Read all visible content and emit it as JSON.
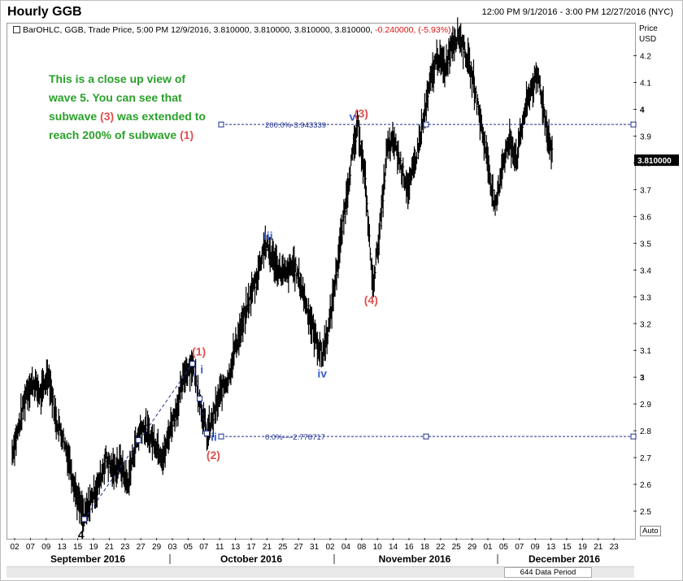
{
  "header": {
    "title": "Hourly GGB",
    "date_range": "12:00 PM 9/1/2016 - 3:00 PM 12/27/2016 (NYC)"
  },
  "legend": {
    "text": "BarOHLC, GGB, Trade Price, 5:00 PM 12/9/2016, 3.810000, 3.810000, 3.810000, 3.810000,",
    "change": "-0.240000, (-5.93%)"
  },
  "price_axis": {
    "title_line1": "Price",
    "title_line2": "USD"
  },
  "annotation_note": {
    "part1": "This is a close up view of wave 5. You can see that subwave ",
    "sub3": "(3)",
    "part2": " was extended to reach 200% of subwave ",
    "sub1": "(1)"
  },
  "auto_label": "Auto",
  "data_period": "644 Data Period",
  "colors": {
    "up_label": "#e05050",
    "down_label": "#3b5ecf",
    "note": "#2aa02a",
    "bars": "#000000",
    "fib": "#1f2f8f"
  },
  "chart_data": {
    "type": "bar",
    "series_kind": "ohlc",
    "title": "Hourly GGB",
    "ylim": [
      2.4,
      4.32
    ],
    "y_ticks": [
      2.5,
      2.6,
      2.7,
      2.8,
      2.9,
      3,
      3.1,
      3.2,
      3.3,
      3.4,
      3.5,
      3.6,
      3.7,
      3.8,
      3.9,
      4,
      4.1,
      4.2
    ],
    "y_tick_labels": [
      "2.5",
      "2.6",
      "2.7",
      "2.8",
      "2.9",
      "3",
      "3.1",
      "3.2",
      "3.3",
      "3.4",
      "3.5",
      "3.6",
      "3.7",
      "3.8",
      "3.9",
      "4",
      "4.1",
      "4.2"
    ],
    "x_day_labels": [
      "02",
      "07",
      "09",
      "13",
      "15",
      "19",
      "21",
      "23",
      "27",
      "29",
      "03",
      "05",
      "07",
      "11",
      "13",
      "17",
      "21",
      "25",
      "27",
      "31",
      "02",
      "04",
      "08",
      "10",
      "14",
      "16",
      "18",
      "22",
      "25",
      "29",
      "01",
      "05",
      "07",
      "09",
      "13",
      "15",
      "19",
      "21",
      "23"
    ],
    "x_month_labels": [
      "September 2016",
      "October 2016",
      "November 2016",
      "December 2016"
    ],
    "last_price": "3.810000",
    "fib_levels": [
      {
        "label": "200.0%-3.943339",
        "value": 3.943339
      },
      {
        "label": "0.0%----2.778717",
        "value": 2.778717
      }
    ],
    "wave_labels": [
      {
        "text": "4",
        "price": 2.47
      },
      {
        "text": "(1)",
        "price": 3.05
      },
      {
        "text": "i",
        "price": 3.02
      },
      {
        "text": "ii",
        "price": 2.78
      },
      {
        "text": "(2)",
        "price": 2.7
      },
      {
        "text": "iii",
        "price": 3.52
      },
      {
        "text": "iv",
        "price": 3.06
      },
      {
        "text": "v",
        "price": 3.94
      },
      {
        "text": "(3)",
        "price": 3.94
      },
      {
        "text": "(4)",
        "price": 3.34
      }
    ],
    "price_path": [
      [
        0,
        2.72
      ],
      [
        1,
        2.82
      ],
      [
        2,
        2.95
      ],
      [
        3,
        2.98
      ],
      [
        4,
        2.93
      ],
      [
        5,
        3.02
      ],
      [
        6,
        2.85
      ],
      [
        7,
        2.78
      ],
      [
        8,
        2.68
      ],
      [
        9,
        2.55
      ],
      [
        10,
        2.47
      ],
      [
        11,
        2.55
      ],
      [
        12,
        2.6
      ],
      [
        13,
        2.7
      ],
      [
        14,
        2.65
      ],
      [
        15,
        2.68
      ],
      [
        16,
        2.6
      ],
      [
        17,
        2.74
      ],
      [
        18,
        2.82
      ],
      [
        19,
        2.78
      ],
      [
        20,
        2.75
      ],
      [
        21,
        2.7
      ],
      [
        22,
        2.82
      ],
      [
        23,
        2.9
      ],
      [
        24,
        3.02
      ],
      [
        25,
        3.05
      ],
      [
        26,
        2.92
      ],
      [
        27,
        2.78
      ],
      [
        28,
        2.86
      ],
      [
        29,
        2.95
      ],
      [
        30,
        3.0
      ],
      [
        31,
        3.12
      ],
      [
        32,
        3.2
      ],
      [
        33,
        3.3
      ],
      [
        34,
        3.38
      ],
      [
        35,
        3.5
      ],
      [
        36,
        3.45
      ],
      [
        37,
        3.4
      ],
      [
        38,
        3.38
      ],
      [
        39,
        3.42
      ],
      [
        40,
        3.35
      ],
      [
        41,
        3.25
      ],
      [
        42,
        3.15
      ],
      [
        43,
        3.08
      ],
      [
        44,
        3.2
      ],
      [
        45,
        3.4
      ],
      [
        46,
        3.6
      ],
      [
        47,
        3.8
      ],
      [
        48,
        3.94
      ],
      [
        49,
        3.72
      ],
      [
        50,
        3.34
      ],
      [
        51,
        3.55
      ],
      [
        52,
        3.85
      ],
      [
        53,
        3.88
      ],
      [
        54,
        3.78
      ],
      [
        55,
        3.7
      ],
      [
        56,
        3.82
      ],
      [
        57,
        3.95
      ],
      [
        58,
        4.1
      ],
      [
        59,
        4.2
      ],
      [
        60,
        4.15
      ],
      [
        61,
        4.25
      ],
      [
        62,
        4.28
      ],
      [
        63,
        4.2
      ],
      [
        64,
        4.1
      ],
      [
        65,
        3.95
      ],
      [
        66,
        3.8
      ],
      [
        67,
        3.62
      ],
      [
        68,
        3.8
      ],
      [
        69,
        3.88
      ],
      [
        70,
        3.82
      ],
      [
        71,
        3.98
      ],
      [
        72,
        4.08
      ],
      [
        73,
        4.12
      ],
      [
        74,
        3.95
      ],
      [
        75,
        3.82
      ]
    ]
  }
}
